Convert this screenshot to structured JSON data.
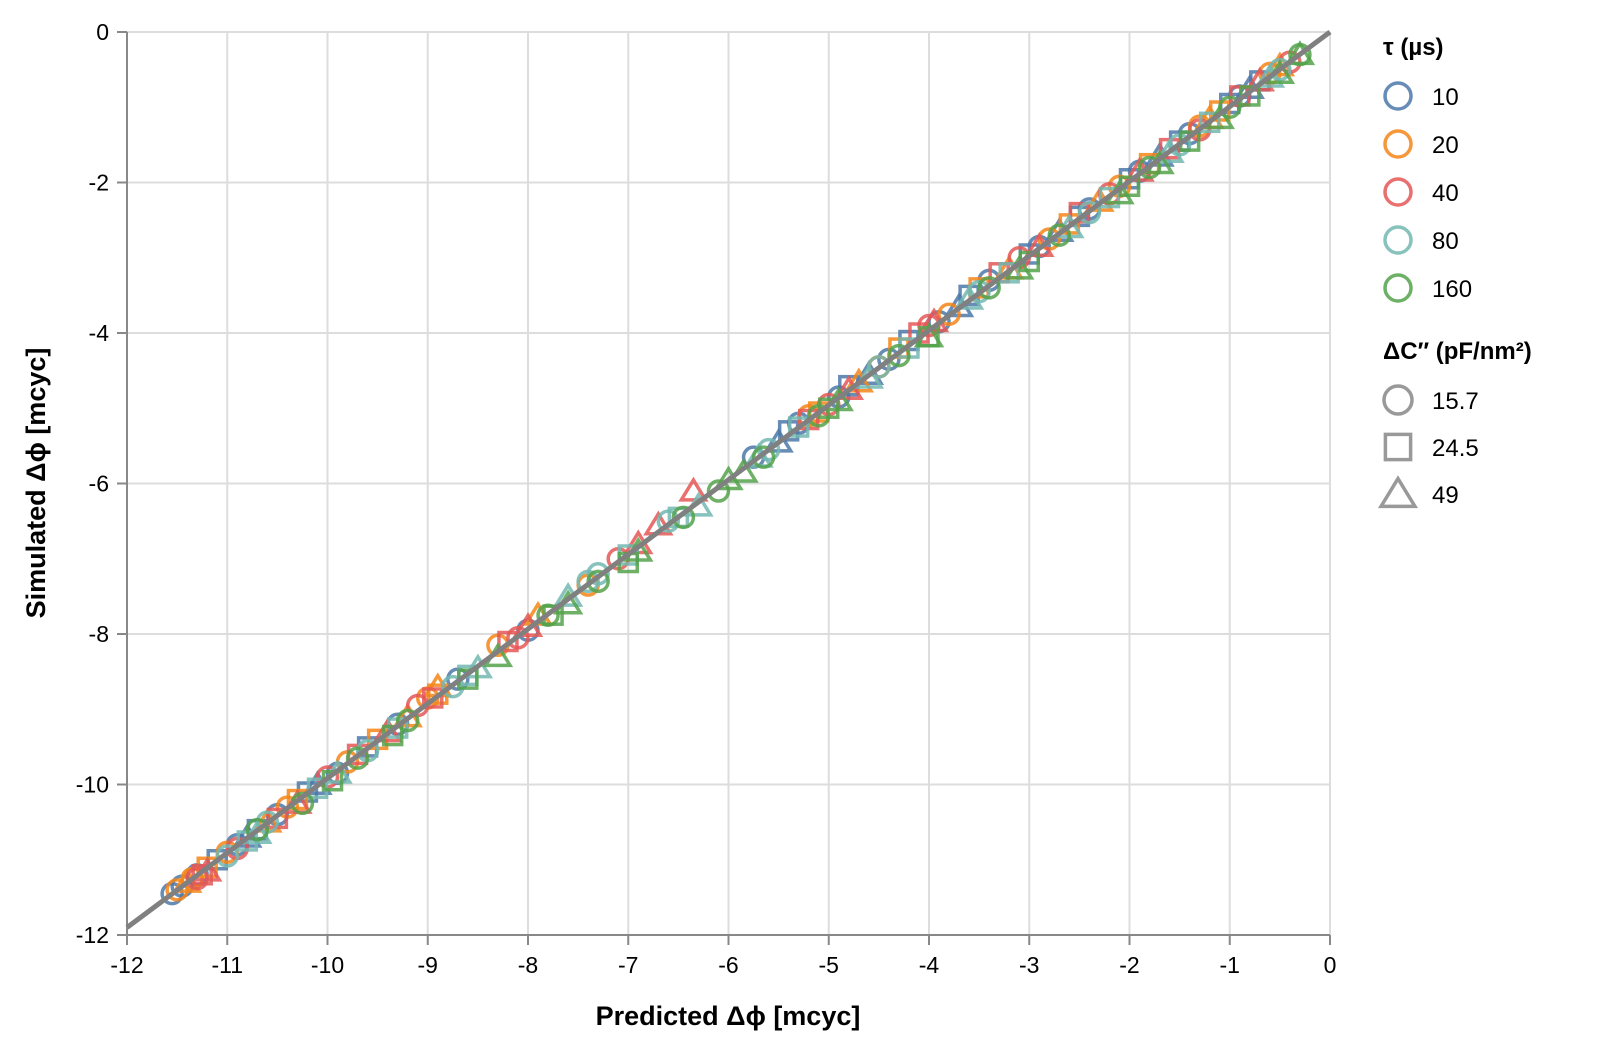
{
  "chart_data": {
    "type": "scatter",
    "xlabel": "Predicted Δϕ [mcyc]",
    "ylabel": "Simulated Δϕ [mcyc]",
    "xlim": [
      -12,
      0
    ],
    "ylim": [
      -12,
      0
    ],
    "x_ticks": [
      "-12",
      "-11",
      "-10",
      "-9",
      "-8",
      "-7",
      "-6",
      "-5",
      "-4",
      "-3",
      "-2",
      "-1",
      "0"
    ],
    "y_ticks": [
      "0",
      "-2",
      "-4",
      "-6",
      "-8",
      "-10",
      "-12"
    ],
    "grid": true,
    "reference_line": {
      "x": [
        -12,
        0
      ],
      "y": [
        -11.9,
        0
      ],
      "color": "#808080"
    },
    "legend_color": {
      "title": "τ (µs)",
      "entries": [
        {
          "label": "10",
          "color": "#4c78a8"
        },
        {
          "label": "20",
          "color": "#f58518"
        },
        {
          "label": "40",
          "color": "#e45756"
        },
        {
          "label": "80",
          "color": "#72b7b2"
        },
        {
          "label": "160",
          "color": "#54a24b"
        }
      ]
    },
    "legend_shape": {
      "title": "ΔC″ (pF/nm²)",
      "entries": [
        {
          "label": "15.7",
          "shape": "circle"
        },
        {
          "label": "24.5",
          "shape": "square"
        },
        {
          "label": "49",
          "shape": "triangle"
        }
      ]
    },
    "series": [
      {
        "tau": "10",
        "capacitance": "15.7",
        "points": [
          [
            -11.55,
            -11.45
          ],
          [
            -11.45,
            -11.35
          ],
          [
            -11.3,
            -11.2
          ],
          [
            -10.9,
            -10.8
          ],
          [
            -10.5,
            -10.4
          ],
          [
            -9.9,
            -9.85
          ],
          [
            -9.3,
            -9.2
          ],
          [
            -8.7,
            -8.6
          ],
          [
            -8.0,
            -7.95
          ],
          [
            -5.75,
            -5.65
          ],
          [
            -5.3,
            -5.2
          ],
          [
            -4.9,
            -4.85
          ],
          [
            -4.4,
            -4.35
          ],
          [
            -3.9,
            -3.85
          ],
          [
            -3.4,
            -3.3
          ],
          [
            -2.9,
            -2.85
          ],
          [
            -2.4,
            -2.35
          ],
          [
            -1.9,
            -1.85
          ],
          [
            -1.4,
            -1.35
          ],
          [
            -0.9,
            -0.85
          ]
        ]
      },
      {
        "tau": "10",
        "capacitance": "24.5",
        "points": [
          [
            -11.1,
            -11.0
          ],
          [
            -10.7,
            -10.6
          ],
          [
            -10.2,
            -10.1
          ],
          [
            -9.6,
            -9.5
          ],
          [
            -5.4,
            -5.3
          ],
          [
            -4.8,
            -4.7
          ],
          [
            -4.2,
            -4.1
          ],
          [
            -3.6,
            -3.5
          ],
          [
            -3.0,
            -2.95
          ],
          [
            -2.5,
            -2.45
          ],
          [
            -2.0,
            -1.95
          ],
          [
            -1.5,
            -1.45
          ],
          [
            -1.0,
            -0.95
          ],
          [
            -0.7,
            -0.65
          ]
        ]
      },
      {
        "tau": "10",
        "capacitance": "49",
        "points": [
          [
            -10.8,
            -10.7
          ],
          [
            -10.1,
            -10.0
          ],
          [
            -5.5,
            -5.45
          ],
          [
            -4.6,
            -4.55
          ],
          [
            -3.7,
            -3.65
          ],
          [
            -2.7,
            -2.65
          ],
          [
            -1.7,
            -1.65
          ],
          [
            -0.8,
            -0.75
          ]
        ]
      },
      {
        "tau": "20",
        "capacitance": "15.7",
        "points": [
          [
            -11.5,
            -11.4
          ],
          [
            -11.35,
            -11.25
          ],
          [
            -11.0,
            -10.9
          ],
          [
            -10.4,
            -10.3
          ],
          [
            -9.8,
            -9.7
          ],
          [
            -9.0,
            -8.85
          ],
          [
            -8.3,
            -8.15
          ],
          [
            -7.4,
            -7.35
          ],
          [
            -5.2,
            -5.1
          ],
          [
            -4.5,
            -4.45
          ],
          [
            -3.8,
            -3.75
          ],
          [
            -2.8,
            -2.75
          ],
          [
            -2.1,
            -2.05
          ],
          [
            -1.3,
            -1.25
          ],
          [
            -0.6,
            -0.55
          ]
        ]
      },
      {
        "tau": "20",
        "capacitance": "24.5",
        "points": [
          [
            -11.2,
            -11.1
          ],
          [
            -10.3,
            -10.2
          ],
          [
            -9.5,
            -9.4
          ],
          [
            -8.9,
            -8.8
          ],
          [
            -5.1,
            -5.05
          ],
          [
            -4.3,
            -4.2
          ],
          [
            -3.5,
            -3.4
          ],
          [
            -2.6,
            -2.55
          ],
          [
            -1.8,
            -1.75
          ],
          [
            -1.1,
            -1.05
          ]
        ]
      },
      {
        "tau": "20",
        "capacitance": "49",
        "points": [
          [
            -11.4,
            -11.3
          ],
          [
            -10.6,
            -10.5
          ],
          [
            -9.2,
            -9.1
          ],
          [
            -8.9,
            -8.7
          ],
          [
            -7.9,
            -7.75
          ],
          [
            -4.7,
            -4.65
          ],
          [
            -3.2,
            -3.15
          ],
          [
            -2.3,
            -2.25
          ],
          [
            -1.2,
            -1.15
          ],
          [
            -0.5,
            -0.45
          ]
        ]
      },
      {
        "tau": "40",
        "capacitance": "15.7",
        "points": [
          [
            -11.3,
            -11.25
          ],
          [
            -10.9,
            -10.85
          ],
          [
            -10.0,
            -9.9
          ],
          [
            -9.1,
            -8.95
          ],
          [
            -8.1,
            -8.05
          ],
          [
            -7.1,
            -7.0
          ],
          [
            -5.0,
            -4.95
          ],
          [
            -4.0,
            -3.9
          ],
          [
            -3.1,
            -3.0
          ],
          [
            -2.2,
            -2.15
          ],
          [
            -1.3,
            -1.3
          ],
          [
            -0.4,
            -0.4
          ]
        ]
      },
      {
        "tau": "40",
        "capacitance": "24.5",
        "points": [
          [
            -11.25,
            -11.2
          ],
          [
            -10.5,
            -10.45
          ],
          [
            -9.7,
            -9.6
          ],
          [
            -8.95,
            -8.85
          ],
          [
            -8.2,
            -8.1
          ],
          [
            -5.2,
            -5.15
          ],
          [
            -4.1,
            -4.0
          ],
          [
            -3.3,
            -3.2
          ],
          [
            -2.5,
            -2.4
          ],
          [
            -1.6,
            -1.55
          ],
          [
            -0.9,
            -0.85
          ]
        ]
      },
      {
        "tau": "40",
        "capacitance": "49",
        "points": [
          [
            -11.2,
            -11.15
          ],
          [
            -10.3,
            -10.25
          ],
          [
            -9.4,
            -9.3
          ],
          [
            -8.0,
            -7.9
          ],
          [
            -6.9,
            -6.8
          ],
          [
            -6.7,
            -6.55
          ],
          [
            -6.35,
            -6.1
          ],
          [
            -4.8,
            -4.75
          ],
          [
            -3.95,
            -3.85
          ],
          [
            -2.9,
            -2.85
          ],
          [
            -1.9,
            -1.85
          ],
          [
            -0.7,
            -0.65
          ]
        ]
      },
      {
        "tau": "80",
        "capacitance": "15.7",
        "points": [
          [
            -11.0,
            -10.95
          ],
          [
            -10.6,
            -10.5
          ],
          [
            -9.6,
            -9.55
          ],
          [
            -8.75,
            -8.7
          ],
          [
            -7.4,
            -7.3
          ],
          [
            -7.3,
            -7.2
          ],
          [
            -6.6,
            -6.5
          ],
          [
            -5.6,
            -5.55
          ],
          [
            -4.5,
            -4.45
          ],
          [
            -3.5,
            -3.45
          ],
          [
            -2.4,
            -2.4
          ],
          [
            -1.5,
            -1.5
          ],
          [
            -0.5,
            -0.5
          ]
        ]
      },
      {
        "tau": "80",
        "capacitance": "24.5",
        "points": [
          [
            -10.8,
            -10.75
          ],
          [
            -10.1,
            -10.05
          ],
          [
            -9.3,
            -9.25
          ],
          [
            -8.6,
            -8.55
          ],
          [
            -7.0,
            -6.95
          ],
          [
            -6.5,
            -6.45
          ],
          [
            -5.3,
            -5.25
          ],
          [
            -4.2,
            -4.2
          ],
          [
            -3.2,
            -3.2
          ],
          [
            -2.2,
            -2.2
          ],
          [
            -1.2,
            -1.2
          ]
        ]
      },
      {
        "tau": "80",
        "capacitance": "49",
        "points": [
          [
            -10.7,
            -10.65
          ],
          [
            -9.9,
            -9.85
          ],
          [
            -8.5,
            -8.45
          ],
          [
            -7.6,
            -7.5
          ],
          [
            -6.3,
            -6.3
          ],
          [
            -5.7,
            -5.65
          ],
          [
            -4.6,
            -4.6
          ],
          [
            -3.6,
            -3.55
          ],
          [
            -2.6,
            -2.6
          ],
          [
            -1.6,
            -1.6
          ],
          [
            -0.6,
            -0.6
          ]
        ]
      },
      {
        "tau": "160",
        "capacitance": "15.7",
        "points": [
          [
            -10.7,
            -10.6
          ],
          [
            -10.25,
            -10.25
          ],
          [
            -9.7,
            -9.65
          ],
          [
            -9.2,
            -9.15
          ],
          [
            -7.8,
            -7.75
          ],
          [
            -7.3,
            -7.3
          ],
          [
            -6.45,
            -6.45
          ],
          [
            -6.1,
            -6.1
          ],
          [
            -5.65,
            -5.65
          ],
          [
            -5.1,
            -5.1
          ],
          [
            -4.3,
            -4.3
          ],
          [
            -3.4,
            -3.4
          ],
          [
            -2.7,
            -2.7
          ],
          [
            -1.8,
            -1.8
          ],
          [
            -1.0,
            -1.0
          ],
          [
            -0.3,
            -0.3
          ]
        ]
      },
      {
        "tau": "160",
        "capacitance": "24.5",
        "points": [
          [
            -9.95,
            -9.95
          ],
          [
            -9.35,
            -9.35
          ],
          [
            -8.6,
            -8.6
          ],
          [
            -7.75,
            -7.75
          ],
          [
            -7.0,
            -7.05
          ],
          [
            -5.0,
            -5.0
          ],
          [
            -4.0,
            -4.05
          ],
          [
            -3.0,
            -3.05
          ],
          [
            -2.0,
            -2.05
          ],
          [
            -1.4,
            -1.45
          ],
          [
            -0.8,
            -0.85
          ]
        ]
      },
      {
        "tau": "160",
        "capacitance": "49",
        "points": [
          [
            -8.3,
            -8.3
          ],
          [
            -7.6,
            -7.6
          ],
          [
            -6.9,
            -6.9
          ],
          [
            -6.0,
            -5.95
          ],
          [
            -5.85,
            -5.85
          ],
          [
            -4.9,
            -4.9
          ],
          [
            -4.0,
            -4.05
          ],
          [
            -3.1,
            -3.15
          ],
          [
            -2.1,
            -2.15
          ],
          [
            -1.7,
            -1.75
          ],
          [
            -1.1,
            -1.15
          ],
          [
            -0.5,
            -0.55
          ],
          [
            -0.3,
            -0.3
          ]
        ]
      }
    ]
  }
}
